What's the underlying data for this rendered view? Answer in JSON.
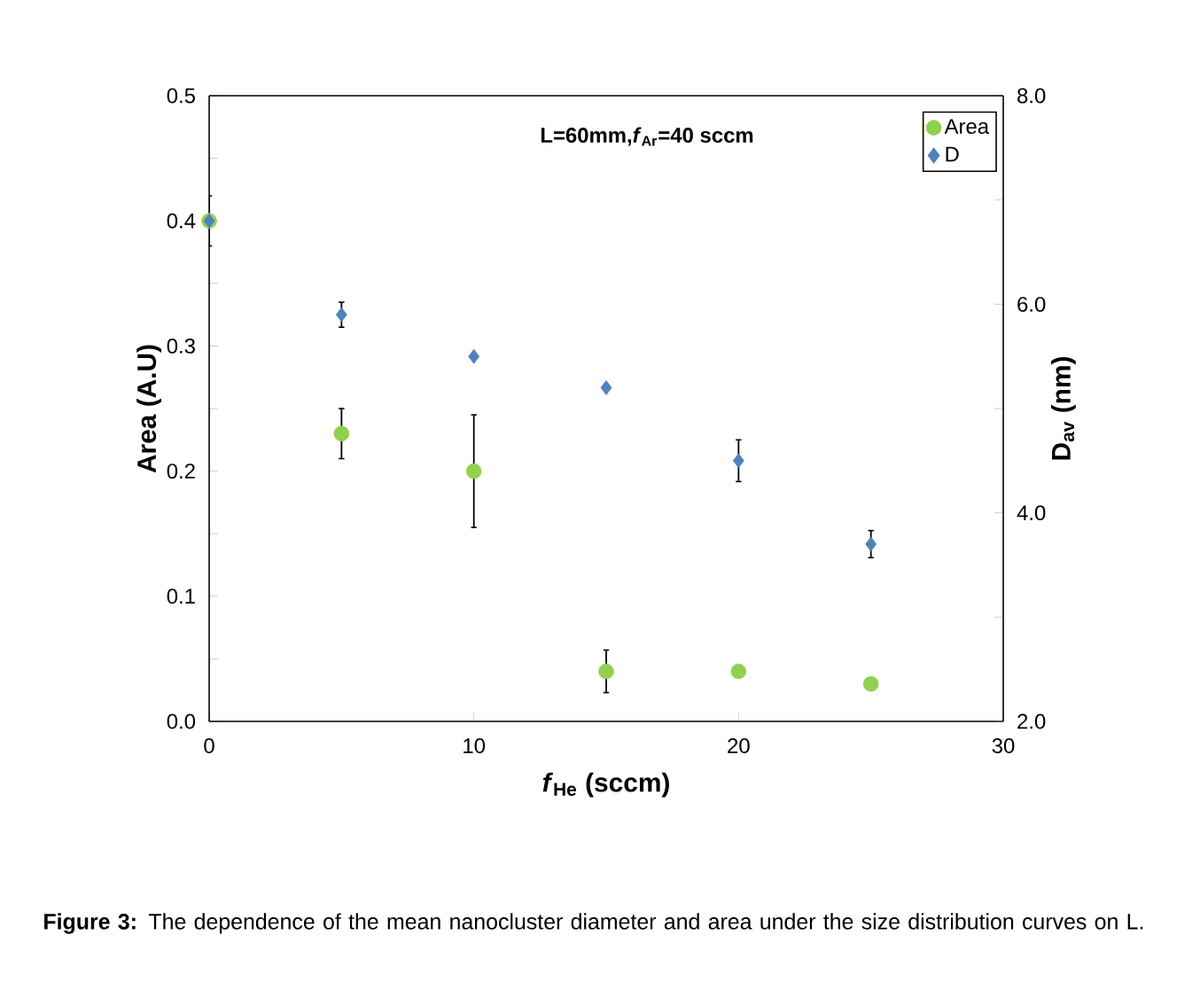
{
  "chart_data": {
    "type": "scatter",
    "xlabel": "*f*$_{He}$ (sccm)",
    "ylabel": "Area (A.U)",
    "y2label": "D$_{av}$ (nm)",
    "x": [
      0,
      5,
      10,
      15,
      20,
      25
    ],
    "series": [
      {
        "name": "Area",
        "color": "#92d050",
        "marker": "circle",
        "values": [
          0.4,
          0.23,
          0.2,
          0.04,
          0.04,
          0.03
        ],
        "errors": [
          0.02,
          0.02,
          0.045,
          0.017,
          null,
          null
        ]
      },
      {
        "name": "D",
        "color": "#4f81bd",
        "marker": "diamond",
        "axis": "y2",
        "values": [
          6.8,
          5.9,
          5.5,
          5.2,
          4.5,
          3.7
        ],
        "errors": [
          null,
          0.12,
          null,
          null,
          0.2,
          0.13
        ]
      }
    ],
    "xlim": [
      0,
      30
    ],
    "xticks": [
      0,
      10,
      20,
      30
    ],
    "ylim": [
      0,
      0.5
    ],
    "yticks": [
      {
        "value": 0,
        "label": "0.0"
      },
      {
        "value": 0.05,
        "label": null
      },
      {
        "value": 0.1,
        "label": "0.1"
      },
      {
        "value": 0.15,
        "label": null
      },
      {
        "value": 0.2,
        "label": "0.2"
      },
      {
        "value": 0.25,
        "label": null
      },
      {
        "value": 0.3,
        "label": "0.3"
      },
      {
        "value": 0.35,
        "label": null
      },
      {
        "value": 0.4,
        "label": "0.4"
      },
      {
        "value": 0.45,
        "label": null
      },
      {
        "value": 0.5,
        "label": "0.5"
      }
    ],
    "y2lim": [
      2,
      8
    ],
    "y2ticks": [
      {
        "value": 2,
        "label": "2.0"
      },
      {
        "value": 3,
        "label": null
      },
      {
        "value": 4,
        "label": "4.0"
      },
      {
        "value": 5,
        "label": null
      },
      {
        "value": 6,
        "label": "6.0"
      },
      {
        "value": 7,
        "label": null
      },
      {
        "value": 8,
        "label": "8.0"
      }
    ],
    "legend": "top right",
    "grid": false,
    "annotations": [
      "L=60mm,*f*$_{Ar}$=40 sccm",
      "**Figure 3:** The dependence of the mean nanocluster diameter and area under the size distribution curves on L."
    ]
  }
}
